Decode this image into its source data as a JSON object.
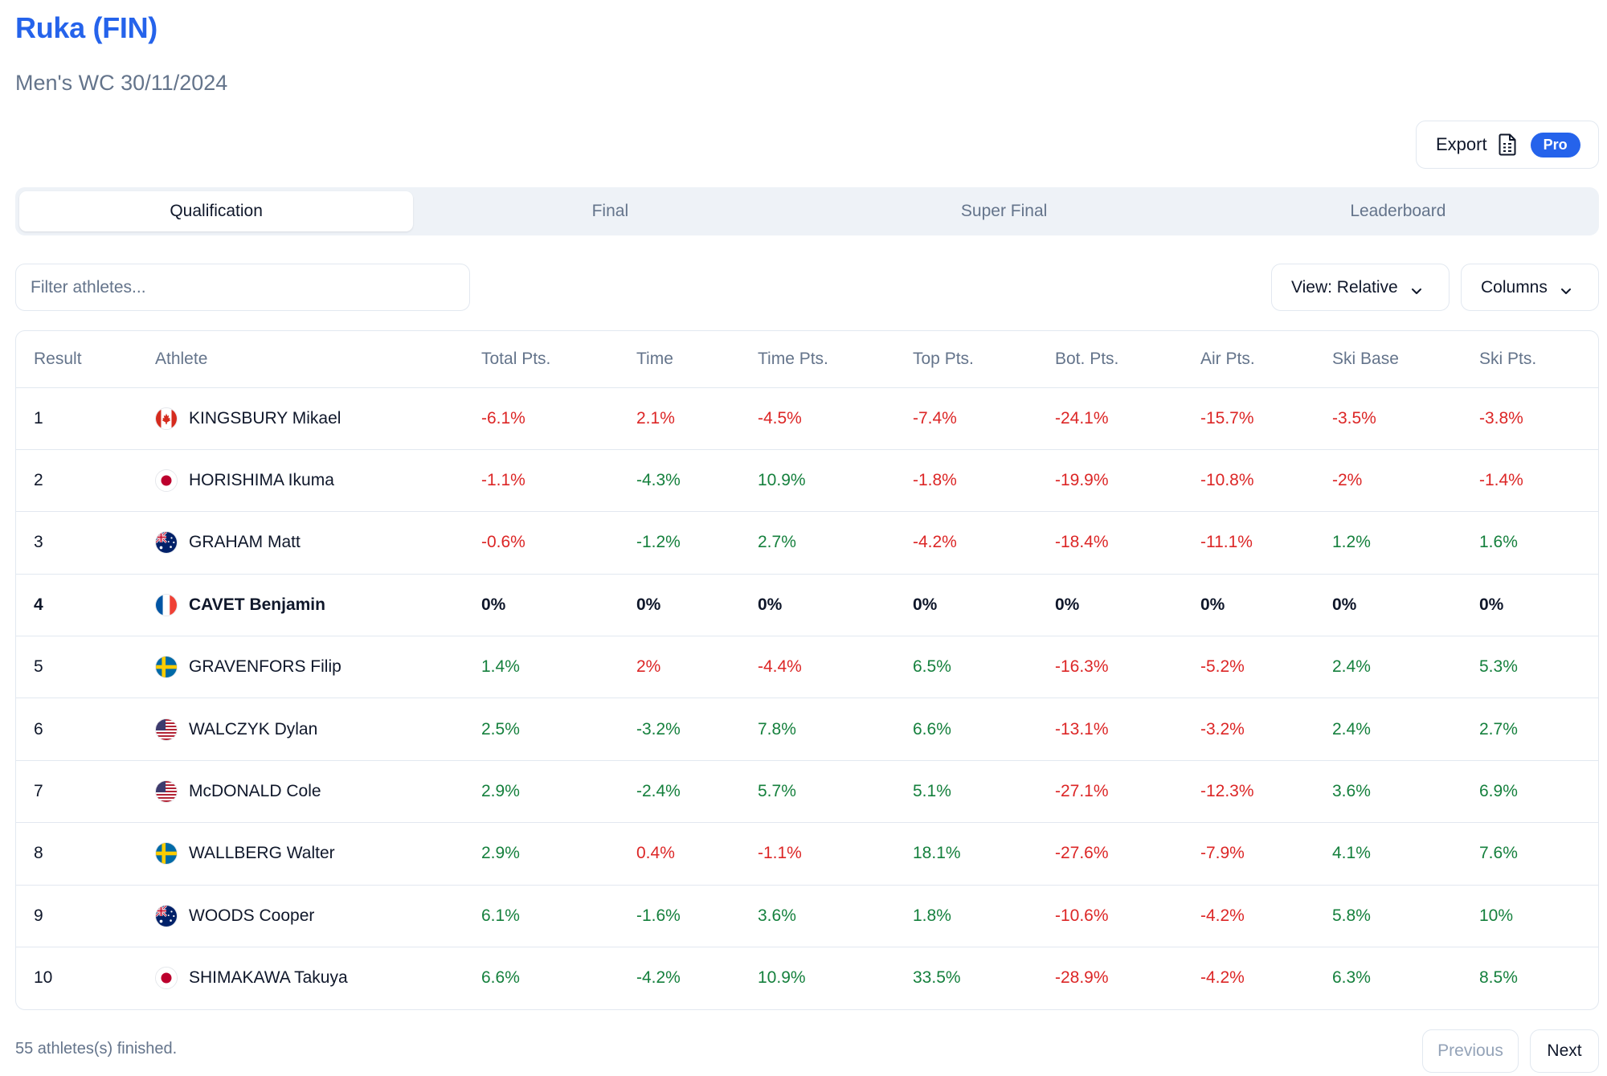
{
  "header": {
    "title": "Ruka (FIN)",
    "subtitle": "Men's WC 30/11/2024"
  },
  "export": {
    "label": "Export",
    "icon": "spreadsheet-document-icon",
    "badge": "Pro"
  },
  "tabs": [
    {
      "label": "Qualification",
      "active": true
    },
    {
      "label": "Final",
      "active": false
    },
    {
      "label": "Super Final",
      "active": false
    },
    {
      "label": "Leaderboard",
      "active": false
    }
  ],
  "filter": {
    "placeholder": "Filter athletes...",
    "value": ""
  },
  "view_select": {
    "label": "View: Relative",
    "icon": "chevron-down-icon"
  },
  "columns_select": {
    "label": "Columns",
    "icon": "chevron-down-icon"
  },
  "colors": {
    "accent": "#2563eb",
    "negative": "#dc2626",
    "positive": "#15803d",
    "muted": "#64748b"
  },
  "table": {
    "columns": [
      "Result",
      "Athlete",
      "Total Pts.",
      "Time",
      "Time Pts.",
      "Top Pts.",
      "Bot. Pts.",
      "Air Pts.",
      "Ski Base",
      "Ski Pts."
    ],
    "rows": [
      {
        "result": "1",
        "flag": "CAN",
        "athlete": "KINGSBURY Mikael",
        "values": [
          "-6.1%",
          "2.1%",
          "-4.5%",
          "-7.4%",
          "-24.1%",
          "-15.7%",
          "-3.5%",
          "-3.8%"
        ],
        "tones": [
          "neg",
          "neg",
          "neg",
          "neg",
          "neg",
          "neg",
          "neg",
          "neg"
        ],
        "bold": false
      },
      {
        "result": "2",
        "flag": "JPN",
        "athlete": "HORISHIMA Ikuma",
        "values": [
          "-1.1%",
          "-4.3%",
          "10.9%",
          "-1.8%",
          "-19.9%",
          "-10.8%",
          "-2%",
          "-1.4%"
        ],
        "tones": [
          "neg",
          "pos",
          "pos",
          "neg",
          "neg",
          "neg",
          "neg",
          "neg"
        ],
        "bold": false
      },
      {
        "result": "3",
        "flag": "AUS",
        "athlete": "GRAHAM Matt",
        "values": [
          "-0.6%",
          "-1.2%",
          "2.7%",
          "-4.2%",
          "-18.4%",
          "-11.1%",
          "1.2%",
          "1.6%"
        ],
        "tones": [
          "neg",
          "pos",
          "pos",
          "neg",
          "neg",
          "neg",
          "pos",
          "pos"
        ],
        "bold": false
      },
      {
        "result": "4",
        "flag": "FRA",
        "athlete": "CAVET Benjamin",
        "values": [
          "0%",
          "0%",
          "0%",
          "0%",
          "0%",
          "0%",
          "0%",
          "0%"
        ],
        "tones": [
          "zero",
          "zero",
          "zero",
          "zero",
          "zero",
          "zero",
          "zero",
          "zero"
        ],
        "bold": true
      },
      {
        "result": "5",
        "flag": "SWE",
        "athlete": "GRAVENFORS Filip",
        "values": [
          "1.4%",
          "2%",
          "-4.4%",
          "6.5%",
          "-16.3%",
          "-5.2%",
          "2.4%",
          "5.3%"
        ],
        "tones": [
          "pos",
          "neg",
          "neg",
          "pos",
          "neg",
          "neg",
          "pos",
          "pos"
        ],
        "bold": false
      },
      {
        "result": "6",
        "flag": "USA",
        "athlete": "WALCZYK Dylan",
        "values": [
          "2.5%",
          "-3.2%",
          "7.8%",
          "6.6%",
          "-13.1%",
          "-3.2%",
          "2.4%",
          "2.7%"
        ],
        "tones": [
          "pos",
          "pos",
          "pos",
          "pos",
          "neg",
          "neg",
          "pos",
          "pos"
        ],
        "bold": false
      },
      {
        "result": "7",
        "flag": "USA",
        "athlete": "McDONALD Cole",
        "values": [
          "2.9%",
          "-2.4%",
          "5.7%",
          "5.1%",
          "-27.1%",
          "-12.3%",
          "3.6%",
          "6.9%"
        ],
        "tones": [
          "pos",
          "pos",
          "pos",
          "pos",
          "neg",
          "neg",
          "pos",
          "pos"
        ],
        "bold": false
      },
      {
        "result": "8",
        "flag": "SWE",
        "athlete": "WALLBERG Walter",
        "values": [
          "2.9%",
          "0.4%",
          "-1.1%",
          "18.1%",
          "-27.6%",
          "-7.9%",
          "4.1%",
          "7.6%"
        ],
        "tones": [
          "pos",
          "neg",
          "neg",
          "pos",
          "neg",
          "neg",
          "pos",
          "pos"
        ],
        "bold": false
      },
      {
        "result": "9",
        "flag": "AUS",
        "athlete": "WOODS Cooper",
        "values": [
          "6.1%",
          "-1.6%",
          "3.6%",
          "1.8%",
          "-10.6%",
          "-4.2%",
          "5.8%",
          "10%"
        ],
        "tones": [
          "pos",
          "pos",
          "pos",
          "pos",
          "neg",
          "neg",
          "pos",
          "pos"
        ],
        "bold": false
      },
      {
        "result": "10",
        "flag": "JPN",
        "athlete": "SHIMAKAWA Takuya",
        "values": [
          "6.6%",
          "-4.2%",
          "10.9%",
          "33.5%",
          "-28.9%",
          "-4.2%",
          "6.3%",
          "8.5%"
        ],
        "tones": [
          "pos",
          "pos",
          "pos",
          "pos",
          "neg",
          "neg",
          "pos",
          "pos"
        ],
        "bold": false
      }
    ]
  },
  "footer": {
    "count_text": "55 athletes(s) finished.",
    "previous_label": "Previous",
    "next_label": "Next"
  }
}
